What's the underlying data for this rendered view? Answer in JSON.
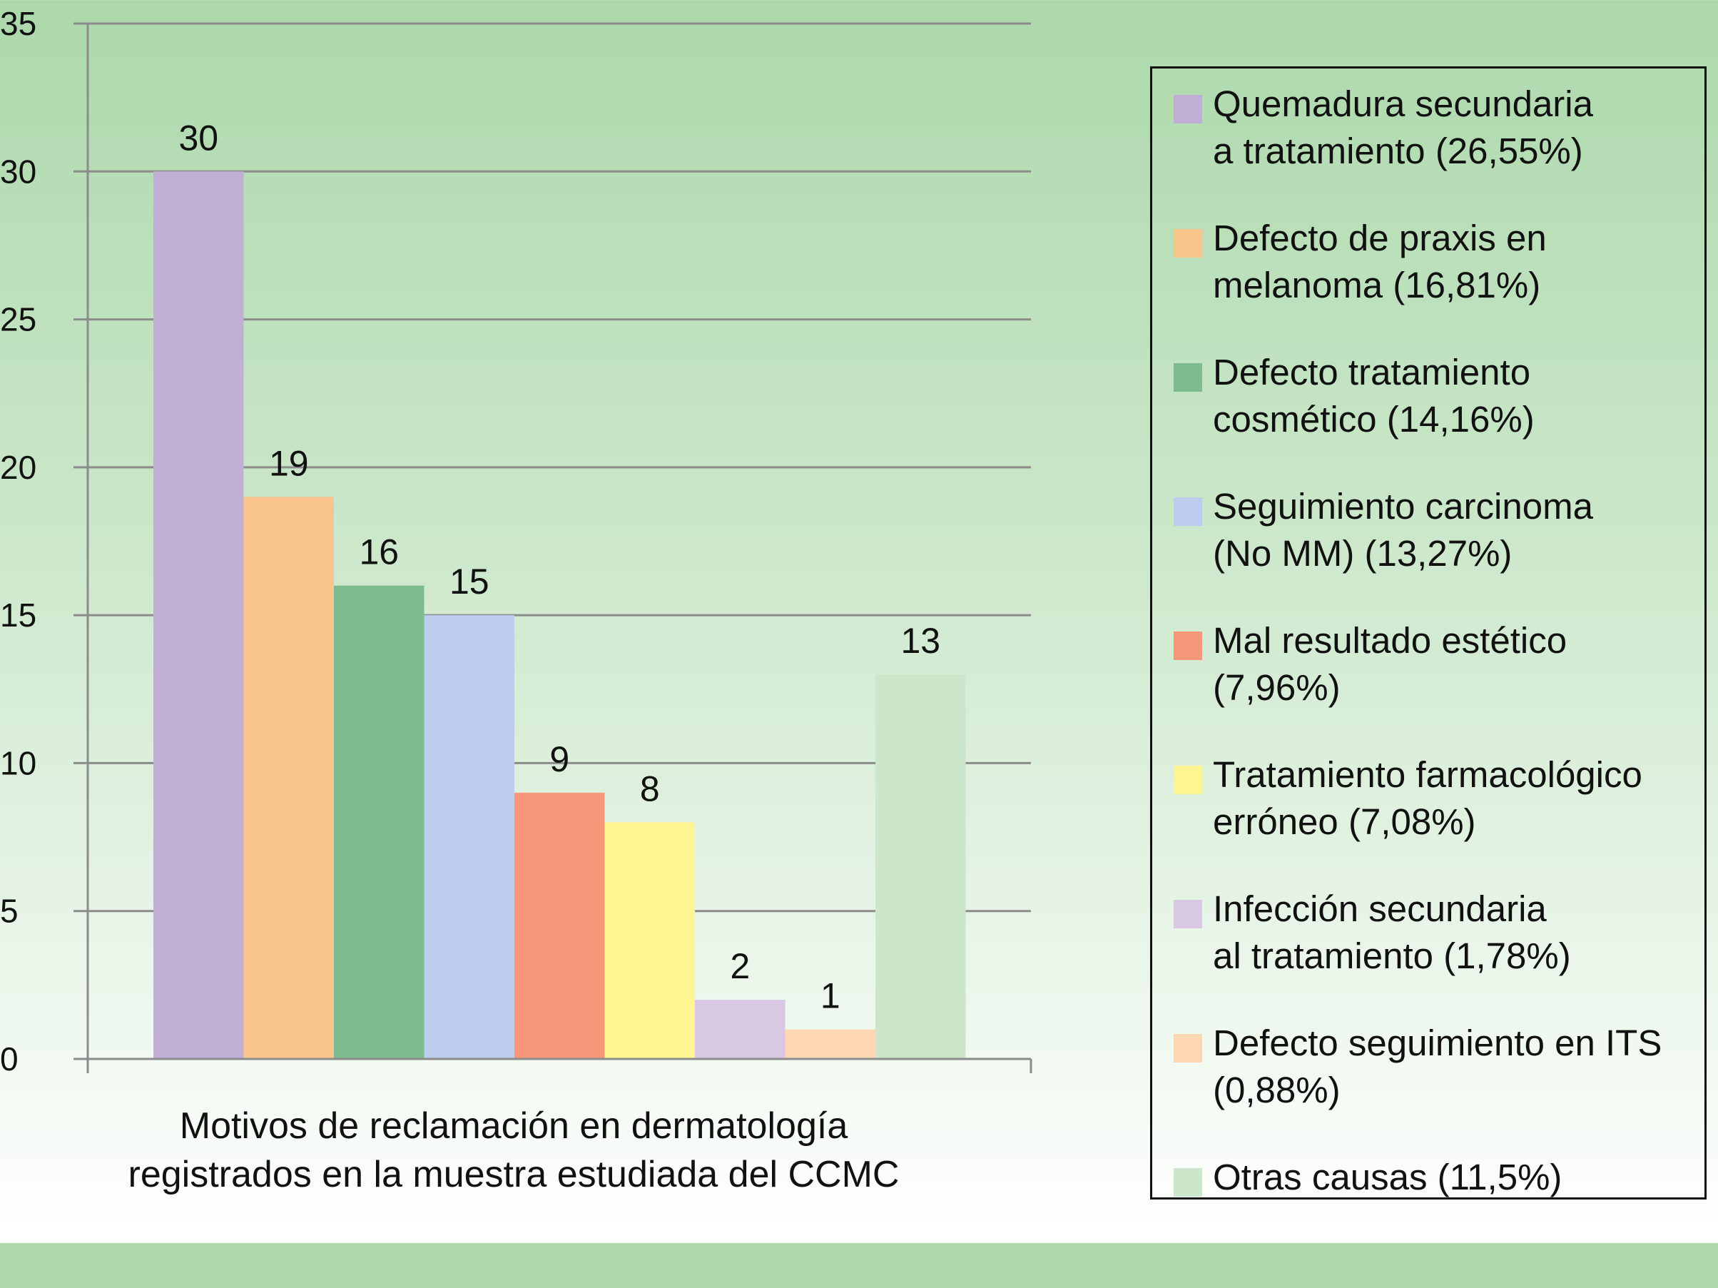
{
  "chart_data": {
    "type": "bar",
    "title": "",
    "xlabel": "Motivos de reclamación en dermatología\nregistrados en la muestra estudiada del CCMC",
    "ylabel": "",
    "ylim": [
      0,
      35
    ],
    "yticks": [
      "0",
      "5",
      "10",
      "15",
      "20",
      "25",
      "30",
      "35"
    ],
    "grid": true,
    "legend_position": "right",
    "categories": [
      "Quemadura secundaria\na tratamiento (26,55%)",
      "Defecto de praxis en\nmelanoma (16,81%)",
      "Defecto tratamiento\ncosmético (14,16%)",
      "Seguimiento carcinoma\n(No MM) (13,27%)",
      "Mal resultado estético\n(7,96%)",
      "Tratamiento farmacológico\nerróneo (7,08%)",
      "Infección secundaria\nal tratamiento (1,78%)",
      "Defecto seguimiento en ITS\n(0,88%)",
      "Otras causas (11,5%)"
    ],
    "values": [
      30,
      19,
      16,
      15,
      9,
      8,
      2,
      1,
      13
    ],
    "value_labels": [
      "30",
      "19",
      "16",
      "15",
      "9",
      "8",
      "2",
      "1",
      "13"
    ],
    "colors": [
      "#c0aed5",
      "#fac58c",
      "#7dbc8f",
      "#bcccec",
      "#f7977a",
      "#fdf690",
      "#d8c8e4",
      "#fdd7b4",
      "#cce6cc"
    ]
  }
}
